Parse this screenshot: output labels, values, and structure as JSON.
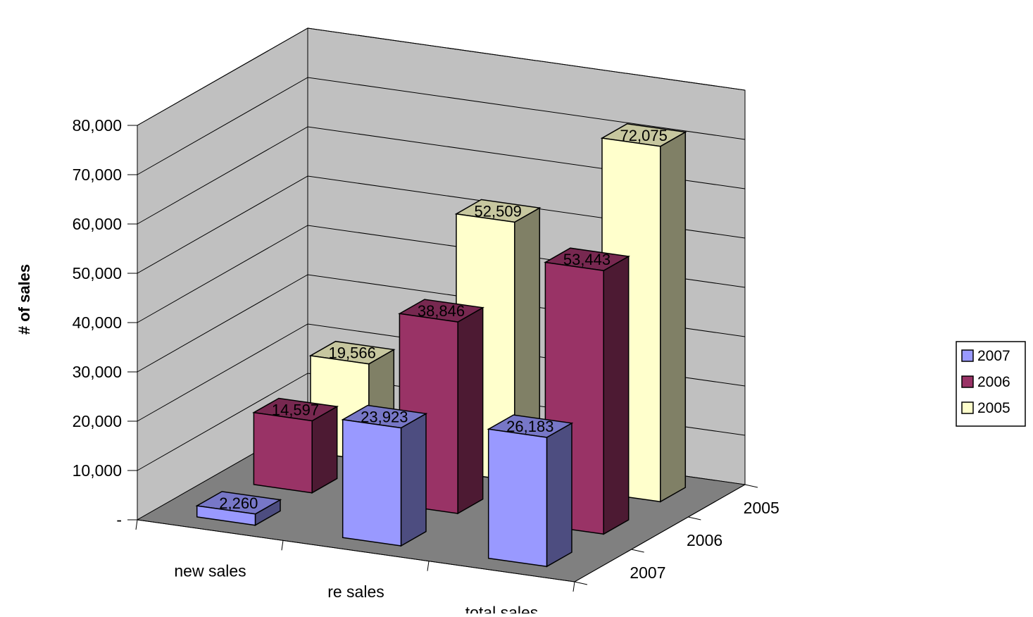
{
  "chart_data": {
    "type": "bar",
    "variant": "3d-column-series-in-depth",
    "ylabel": "# of sales",
    "ylim": [
      0,
      80000
    ],
    "y_ticks": [
      {
        "value": 0,
        "label": "-"
      },
      {
        "value": 10000,
        "label": "10,000"
      },
      {
        "value": 20000,
        "label": "20,000"
      },
      {
        "value": 30000,
        "label": "30,000"
      },
      {
        "value": 40000,
        "label": "40,000"
      },
      {
        "value": 50000,
        "label": "50,000"
      },
      {
        "value": 60000,
        "label": "60,000"
      },
      {
        "value": 70000,
        "label": "70,000"
      },
      {
        "value": 80000,
        "label": "80,000"
      }
    ],
    "categories": [
      "new sales",
      "re sales",
      "total sales"
    ],
    "depth_labels": [
      "2005",
      "2006",
      "2007"
    ],
    "series": [
      {
        "name": "2007",
        "color": "#9999ff",
        "values": [
          2260,
          23923,
          26183
        ],
        "labels": [
          "2,260",
          "23,923",
          "26,183"
        ]
      },
      {
        "name": "2006",
        "color": "#993366",
        "values": [
          14597,
          38846,
          53443
        ],
        "labels": [
          "14,597",
          "38,846",
          "53,443"
        ]
      },
      {
        "name": "2005",
        "color": "#ffffcc",
        "values": [
          19566,
          52509,
          72075
        ],
        "labels": [
          "19,566",
          "52,509",
          "72,075"
        ]
      }
    ],
    "legend": {
      "position": "right",
      "entries": [
        "2007",
        "2006",
        "2005"
      ]
    },
    "grid": true,
    "colors": {
      "back_wall": "#c0c0c0",
      "floor": "#808080",
      "gridline": "#000000"
    }
  }
}
